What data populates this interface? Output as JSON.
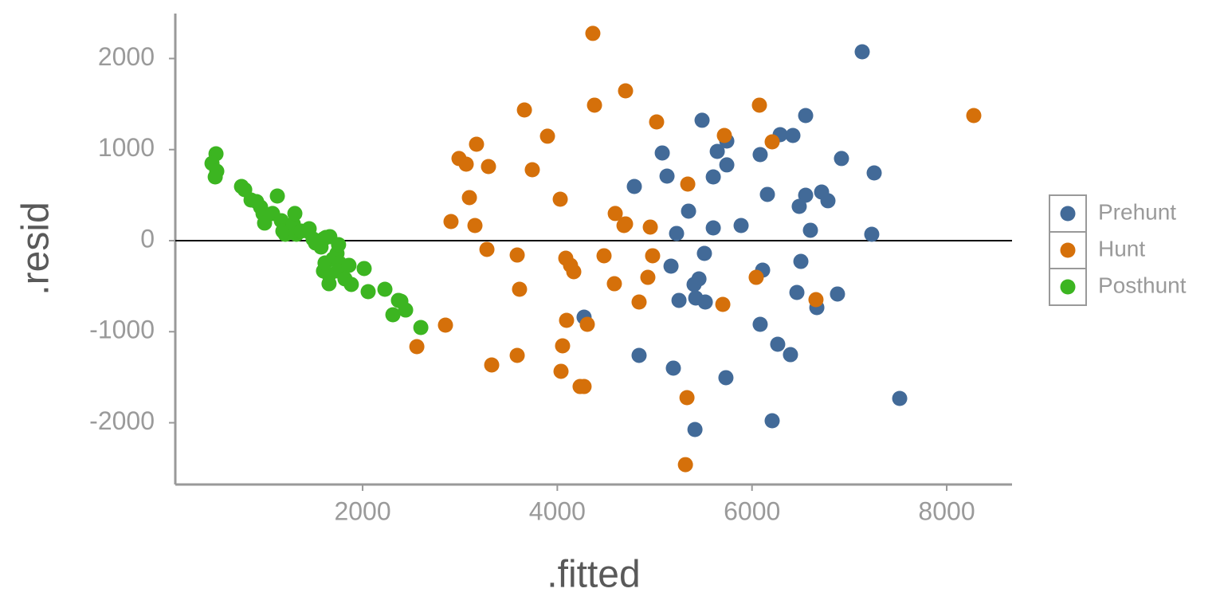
{
  "chart_data": {
    "type": "scatter",
    "x_label": ".fitted",
    "y_label": ".resid",
    "xlim": [
      76,
      8671
    ],
    "ylim": [
      -2678,
      2494
    ],
    "xticks": [
      2000,
      4000,
      6000,
      8000
    ],
    "yticks": [
      -2000,
      -1000,
      0,
      1000,
      2000
    ],
    "hline": 0,
    "legend": "right",
    "series": [
      {
        "name": "Prehunt",
        "color": "#426a98",
        "x": [
          7132,
          7255,
          7230,
          6919,
          6715,
          6780,
          6551,
          6485,
          6600,
          6551,
          6420,
          6289,
          6084,
          6158,
          5741,
          5741,
          5643,
          5487,
          5078,
          5127,
          5602,
          5348,
          4791,
          5888,
          5602,
          5225,
          6502,
          6109,
          5511,
          5168,
          5455,
          5405,
          5520,
          5422,
          5250,
          6461,
          6666,
          6878,
          6084,
          4275,
          6264,
          6395,
          4840,
          5192,
          5732,
          7517,
          6207,
          5414
        ],
        "y": [
          2074,
          744,
          70,
          902,
          534,
          438,
          499,
          376,
          114,
          1374,
          1155,
          1164,
          945,
          508,
          1094,
          832,
          980,
          1322,
          963,
          709,
          700,
          324,
          595,
          166,
          140,
          79,
          -228,
          -324,
          -140,
          -280,
          -420,
          -481,
          -674,
          -630,
          -656,
          -569,
          -735,
          -586,
          -919,
          -840,
          -1138,
          -1252,
          -1260,
          -1400,
          -1505,
          -1733,
          -1978,
          -2074
        ]
      },
      {
        "name": "Hunt",
        "color": "#d5700a",
        "x": [
          4365,
          8278,
          4701,
          4382,
          6076,
          3662,
          5020,
          5716,
          3899,
          6207,
          3170,
          2990,
          3064,
          3293,
          3743,
          5340,
          3097,
          4030,
          4595,
          4701,
          4685,
          4955,
          2908,
          3154,
          3277,
          3588,
          4087,
          4480,
          4979,
          4136,
          4169,
          4930,
          4586,
          6043,
          3612,
          5700,
          6657,
          4840,
          4095,
          4308,
          2851,
          2557,
          4054,
          3588,
          3326,
          4038,
          4234,
          4275,
          5332,
          5316
        ],
        "y": [
          2276,
          1374,
          1645,
          1488,
          1488,
          1435,
          1304,
          1155,
          1147,
          1085,
          1059,
          902,
          840,
          814,
          779,
          621,
          473,
          455,
          298,
          184,
          166,
          149,
          210,
          166,
          -96,
          -158,
          -193,
          -166,
          -166,
          -271,
          -341,
          -403,
          -473,
          -403,
          -534,
          -700,
          -648,
          -674,
          -875,
          -919,
          -928,
          -1164,
          -1155,
          -1260,
          -1365,
          -1435,
          -1602,
          -1602,
          -1724,
          -2460
        ]
      },
      {
        "name": "Posthunt",
        "color": "#3cb521",
        "x": [
          494,
          453,
          502,
          486,
          756,
          789,
          854,
          911,
          952,
          977,
          993,
          1075,
          1124,
          1165,
          1181,
          1206,
          1288,
          1304,
          1320,
          1369,
          1434,
          1451,
          1491,
          1532,
          1573,
          1598,
          1663,
          1598,
          1655,
          1614,
          1696,
          1737,
          1753,
          1761,
          1745,
          1655,
          1819,
          1860,
          1884,
          2016,
          2057,
          2229,
          2368,
          2393,
          2442,
          2311,
          2598,
          1516,
          1622
        ],
        "y": [
          954,
          849,
          762,
          700,
          595,
          560,
          446,
          429,
          368,
          298,
          193,
          298,
          490,
          219,
          105,
          70,
          184,
          298,
          70,
          105,
          105,
          131,
          18,
          -26,
          -70,
          18,
          44,
          -333,
          -376,
          -245,
          -201,
          -140,
          -44,
          -245,
          -333,
          -473,
          -420,
          -271,
          -481,
          -306,
          -560,
          -534,
          -656,
          -665,
          -762,
          -814,
          -954,
          -26,
          35
        ]
      }
    ]
  }
}
